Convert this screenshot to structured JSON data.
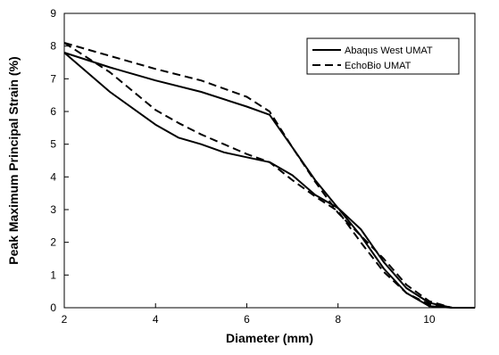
{
  "chart_data": {
    "type": "line",
    "title": "",
    "xlabel": "Diameter (mm)",
    "ylabel": "Peak Maximum Principal Strain (%)",
    "xlim": [
      2,
      11
    ],
    "ylim": [
      0,
      9
    ],
    "xticks": [
      2,
      4,
      6,
      8,
      10
    ],
    "yticks": [
      0,
      1,
      2,
      3,
      4,
      5,
      6,
      7,
      8,
      9
    ],
    "grid": false,
    "legend_position": "top-right",
    "series": [
      {
        "name": "Abaqus West UMAT",
        "style": "solid",
        "color": "#000000",
        "curves": [
          [
            [
              2.0,
              7.8
            ],
            [
              3.0,
              7.35
            ],
            [
              4.0,
              6.95
            ],
            [
              5.0,
              6.6
            ],
            [
              6.0,
              6.15
            ],
            [
              6.5,
              5.9
            ],
            [
              7.0,
              4.9
            ],
            [
              7.5,
              3.9
            ],
            [
              8.0,
              3.05
            ],
            [
              8.5,
              2.4
            ],
            [
              9.0,
              1.4
            ],
            [
              9.5,
              0.6
            ],
            [
              10.0,
              0.15
            ],
            [
              10.5,
              0.0
            ],
            [
              11.0,
              0.0
            ]
          ],
          [
            [
              2.0,
              7.8
            ],
            [
              3.0,
              6.6
            ],
            [
              4.0,
              5.6
            ],
            [
              4.5,
              5.2
            ],
            [
              5.0,
              5.0
            ],
            [
              5.5,
              4.75
            ],
            [
              6.0,
              4.6
            ],
            [
              6.5,
              4.45
            ],
            [
              7.0,
              4.05
            ],
            [
              7.5,
              3.45
            ],
            [
              8.0,
              3.05
            ],
            [
              8.5,
              2.2
            ],
            [
              9.0,
              1.2
            ],
            [
              9.5,
              0.45
            ],
            [
              10.0,
              0.05
            ],
            [
              10.5,
              0.0
            ],
            [
              11.0,
              0.0
            ]
          ]
        ]
      },
      {
        "name": "EchoBio UMAT",
        "style": "dashed",
        "color": "#000000",
        "curves": [
          [
            [
              2.0,
              8.1
            ],
            [
              3.0,
              7.7
            ],
            [
              4.0,
              7.3
            ],
            [
              5.0,
              6.95
            ],
            [
              6.0,
              6.45
            ],
            [
              6.5,
              6.0
            ],
            [
              7.0,
              4.9
            ],
            [
              7.5,
              3.85
            ],
            [
              8.0,
              2.9
            ],
            [
              8.5,
              2.2
            ],
            [
              9.0,
              1.5
            ],
            [
              9.5,
              0.7
            ],
            [
              10.0,
              0.2
            ],
            [
              10.5,
              0.0
            ],
            [
              11.0,
              0.0
            ]
          ],
          [
            [
              2.0,
              8.1
            ],
            [
              3.0,
              7.2
            ],
            [
              4.0,
              6.05
            ],
            [
              4.5,
              5.65
            ],
            [
              5.0,
              5.3
            ],
            [
              5.5,
              5.0
            ],
            [
              6.0,
              4.7
            ],
            [
              6.5,
              4.45
            ],
            [
              7.0,
              3.9
            ],
            [
              7.5,
              3.4
            ],
            [
              8.0,
              2.95
            ],
            [
              8.5,
              2.0
            ],
            [
              9.0,
              1.1
            ],
            [
              9.5,
              0.45
            ],
            [
              10.0,
              0.1
            ],
            [
              10.5,
              0.0
            ],
            [
              11.0,
              0.0
            ]
          ]
        ]
      }
    ]
  }
}
